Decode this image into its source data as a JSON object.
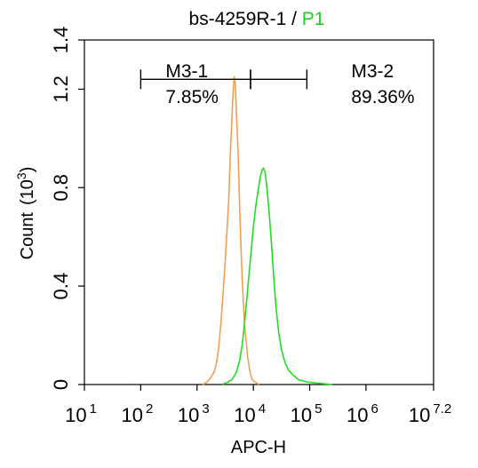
{
  "chart_data": {
    "type": "histogram",
    "title": "bs-4259R-1 / ",
    "title_gate": "P1",
    "title_gate_color": "#22cc22",
    "xlabel": "APC-H",
    "ylabel": "Count",
    "ylabel_unit_base": "(10",
    "ylabel_unit_exp": "3",
    "ylabel_unit_close": ")",
    "x_scale": "log",
    "xlim_log10": [
      1,
      7.2
    ],
    "ylim": [
      0,
      1.4
    ],
    "x_ticks": [
      {
        "base": "10",
        "exp": "1",
        "log": 1
      },
      {
        "base": "10",
        "exp": "2",
        "log": 2
      },
      {
        "base": "10",
        "exp": "3",
        "log": 3
      },
      {
        "base": "10",
        "exp": "4",
        "log": 4
      },
      {
        "base": "10",
        "exp": "5",
        "log": 5
      },
      {
        "base": "10",
        "exp": "6",
        "log": 6
      },
      {
        "base": "10",
        "exp": "7.2",
        "log": 7.2
      }
    ],
    "y_ticks": [
      {
        "label": "0",
        "value": 0
      },
      {
        "label": "0.4",
        "value": 0.4
      },
      {
        "label": "0.8",
        "value": 0.8
      },
      {
        "label": "1.2",
        "value": 1.2
      },
      {
        "label": "1.4",
        "value": 1.4
      }
    ],
    "series": [
      {
        "color": "#f0a050",
        "points": [
          [
            3.1,
            0.0
          ],
          [
            3.18,
            0.01
          ],
          [
            3.25,
            0.03
          ],
          [
            3.3,
            0.05
          ],
          [
            3.34,
            0.08
          ],
          [
            3.38,
            0.14
          ],
          [
            3.42,
            0.24
          ],
          [
            3.46,
            0.36
          ],
          [
            3.5,
            0.5
          ],
          [
            3.53,
            0.62
          ],
          [
            3.56,
            0.74
          ],
          [
            3.58,
            0.86
          ],
          [
            3.6,
            0.98
          ],
          [
            3.62,
            1.08
          ],
          [
            3.63,
            1.14
          ],
          [
            3.64,
            1.18
          ],
          [
            3.65,
            1.22
          ],
          [
            3.66,
            1.25
          ],
          [
            3.67,
            1.24
          ],
          [
            3.68,
            1.22
          ],
          [
            3.69,
            1.16
          ],
          [
            3.7,
            1.1
          ],
          [
            3.72,
            1.0
          ],
          [
            3.74,
            0.86
          ],
          [
            3.76,
            0.7
          ],
          [
            3.78,
            0.56
          ],
          [
            3.8,
            0.44
          ],
          [
            3.82,
            0.34
          ],
          [
            3.84,
            0.26
          ],
          [
            3.86,
            0.2
          ],
          [
            3.88,
            0.16
          ],
          [
            3.9,
            0.11
          ],
          [
            3.92,
            0.08
          ],
          [
            3.95,
            0.04
          ],
          [
            3.98,
            0.02
          ],
          [
            4.03,
            0.01
          ],
          [
            4.1,
            0.0
          ]
        ]
      },
      {
        "color": "#22dd22",
        "points": [
          [
            3.45,
            0.0
          ],
          [
            3.55,
            0.01
          ],
          [
            3.62,
            0.02
          ],
          [
            3.7,
            0.05
          ],
          [
            3.76,
            0.1
          ],
          [
            3.8,
            0.16
          ],
          [
            3.84,
            0.24
          ],
          [
            3.88,
            0.34
          ],
          [
            3.92,
            0.44
          ],
          [
            3.96,
            0.54
          ],
          [
            4.0,
            0.64
          ],
          [
            4.04,
            0.72
          ],
          [
            4.08,
            0.78
          ],
          [
            4.12,
            0.84
          ],
          [
            4.15,
            0.87
          ],
          [
            4.18,
            0.88
          ],
          [
            4.21,
            0.86
          ],
          [
            4.24,
            0.8
          ],
          [
            4.28,
            0.7
          ],
          [
            4.32,
            0.58
          ],
          [
            4.36,
            0.44
          ],
          [
            4.4,
            0.32
          ],
          [
            4.45,
            0.21
          ],
          [
            4.5,
            0.14
          ],
          [
            4.56,
            0.09
          ],
          [
            4.62,
            0.06
          ],
          [
            4.7,
            0.04
          ],
          [
            4.8,
            0.02
          ],
          [
            4.95,
            0.01
          ],
          [
            5.15,
            0.005
          ],
          [
            5.4,
            0.0
          ]
        ]
      }
    ],
    "gates": [
      {
        "name": "M3-1",
        "percent": "7.85%",
        "x_start_log": 2.0,
        "x_end_log": 3.95,
        "y": 1.24
      },
      {
        "name": "M3-2",
        "percent": "89.36%",
        "x_start_log": 3.95,
        "x_end_log": 4.95,
        "y": 1.24
      }
    ]
  }
}
